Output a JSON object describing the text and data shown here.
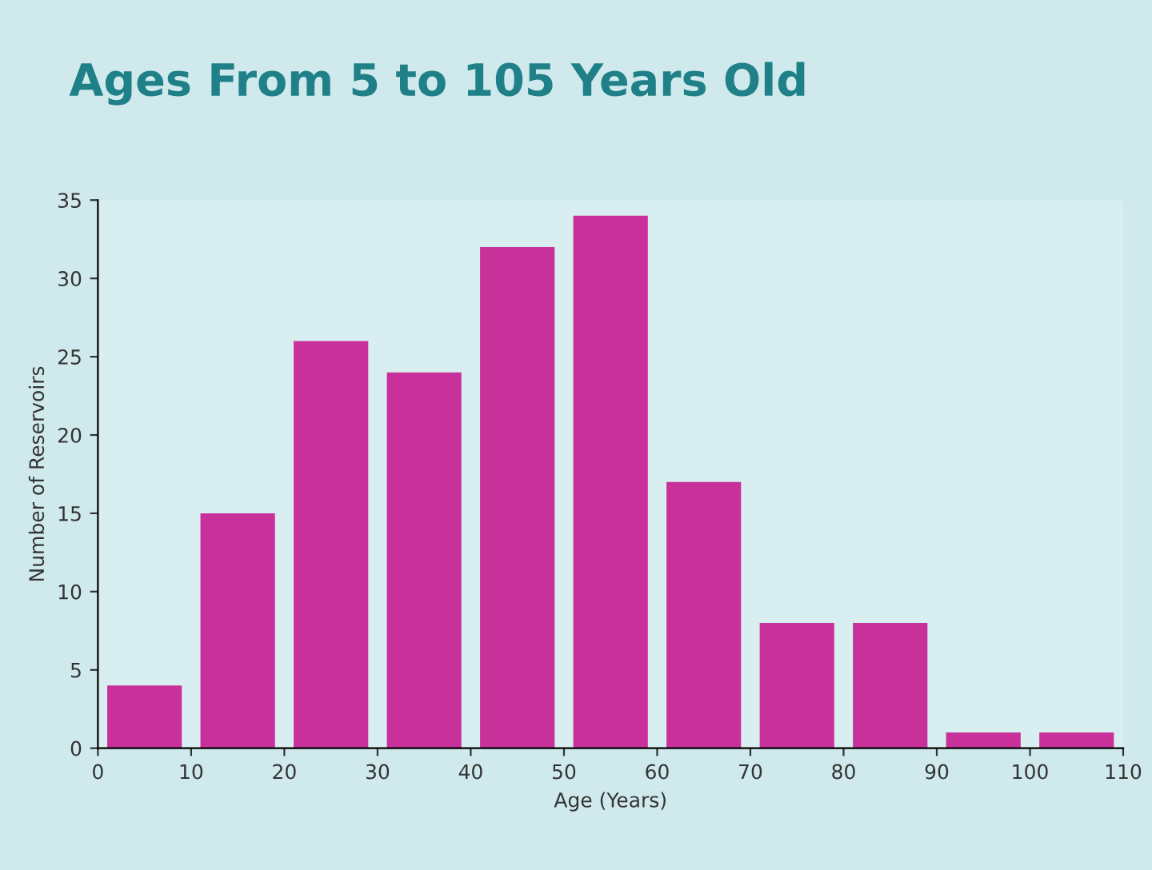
{
  "chart_data": {
    "type": "histogram",
    "title": "Ages From 5 to 105 Years Old",
    "xlabel": "Age (Years)",
    "ylabel": "Number of Reservoirs",
    "bins": [
      0,
      10,
      20,
      30,
      40,
      50,
      60,
      70,
      80,
      90,
      100,
      110
    ],
    "values": [
      4,
      15,
      26,
      24,
      32,
      34,
      17,
      8,
      8,
      1,
      1
    ],
    "color": "#c8319a",
    "xlim": [
      0,
      110
    ],
    "xticks": [
      0,
      10,
      20,
      30,
      40,
      50,
      60,
      70,
      80,
      90,
      100,
      110
    ],
    "ylim": [
      0,
      35
    ],
    "yticks": [
      0,
      5,
      10,
      15,
      20,
      25,
      30,
      35
    ],
    "grid": false,
    "legend": false
  }
}
